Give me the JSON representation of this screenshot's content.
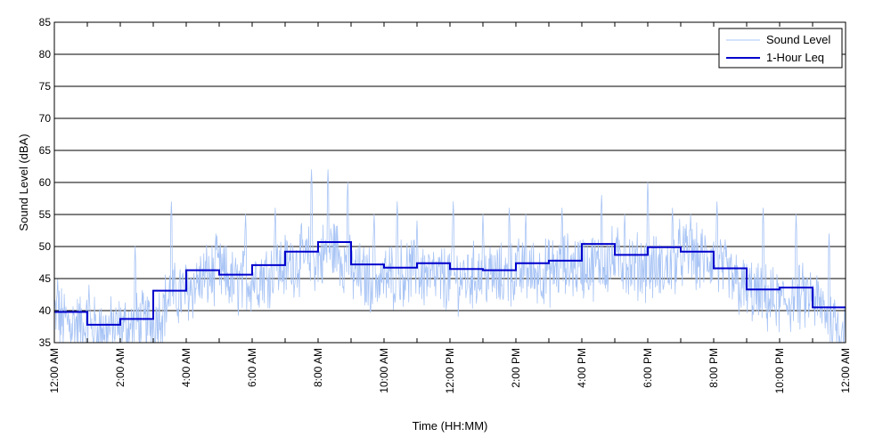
{
  "chart_data": {
    "type": "line",
    "title": "",
    "xlabel": "Time (HH:MM)",
    "ylabel": "Sound Level (dBA)",
    "ylim": [
      35,
      85
    ],
    "xlim_hours": [
      0,
      24
    ],
    "yticks": [
      35,
      40,
      45,
      50,
      55,
      60,
      65,
      70,
      75,
      80,
      85
    ],
    "xticks": [
      {
        "hour": 0,
        "label": "12:00 AM"
      },
      {
        "hour": 2,
        "label": "2:00 AM"
      },
      {
        "hour": 4,
        "label": "4:00 AM"
      },
      {
        "hour": 6,
        "label": "6:00 AM"
      },
      {
        "hour": 8,
        "label": "8:00 AM"
      },
      {
        "hour": 10,
        "label": "10:00 AM"
      },
      {
        "hour": 12,
        "label": "12:00 PM"
      },
      {
        "hour": 14,
        "label": "2:00 PM"
      },
      {
        "hour": 16,
        "label": "4:00 PM"
      },
      {
        "hour": 18,
        "label": "6:00 PM"
      },
      {
        "hour": 20,
        "label": "8:00 PM"
      },
      {
        "hour": 22,
        "label": "10:00 PM"
      },
      {
        "hour": 24,
        "label": "12:00 AM"
      }
    ],
    "grid": "horizontal",
    "legend_position": "top-right",
    "series": [
      {
        "name": "Sound Level",
        "kind": "fluctuating-trace",
        "color": "#a8c4f5",
        "x_hours": [
          0,
          0.5,
          1,
          1.5,
          2,
          2.5,
          3,
          3.5,
          4,
          4.5,
          5,
          5.5,
          6,
          6.5,
          7,
          7.5,
          8,
          8.5,
          9,
          9.5,
          10,
          10.5,
          11,
          11.5,
          12,
          12.5,
          13,
          13.5,
          14,
          14.5,
          15,
          15.5,
          16,
          16.5,
          17,
          17.5,
          18,
          18.5,
          19,
          19.5,
          20,
          20.5,
          21,
          21.5,
          22,
          22.5,
          23,
          23.5,
          24
        ],
        "values": [
          39,
          38,
          37.5,
          37,
          37,
          38,
          38,
          42,
          43,
          45,
          46,
          44,
          45,
          46,
          47,
          48,
          48,
          50,
          46,
          45,
          45,
          46,
          46,
          45,
          45,
          45,
          46,
          45,
          46,
          46,
          46,
          47,
          47,
          47,
          48,
          47,
          47,
          46,
          49,
          48,
          48,
          45,
          43,
          42,
          41,
          42,
          42,
          39,
          37
        ],
        "peaks": [
          {
            "hour": 0.1,
            "value": 45
          },
          {
            "hour": 1.05,
            "value": 44
          },
          {
            "hour": 2.45,
            "value": 50
          },
          {
            "hour": 3.55,
            "value": 57
          },
          {
            "hour": 4.9,
            "value": 52
          },
          {
            "hour": 5.8,
            "value": 55
          },
          {
            "hour": 6.7,
            "value": 56
          },
          {
            "hour": 7.8,
            "value": 62
          },
          {
            "hour": 8.3,
            "value": 62
          },
          {
            "hour": 8.9,
            "value": 60
          },
          {
            "hour": 9.7,
            "value": 55
          },
          {
            "hour": 10.4,
            "value": 57
          },
          {
            "hour": 11.0,
            "value": 54
          },
          {
            "hour": 12.1,
            "value": 57
          },
          {
            "hour": 13.0,
            "value": 55
          },
          {
            "hour": 13.8,
            "value": 56
          },
          {
            "hour": 14.3,
            "value": 55
          },
          {
            "hour": 15.4,
            "value": 56
          },
          {
            "hour": 16.6,
            "value": 58
          },
          {
            "hour": 17.3,
            "value": 55
          },
          {
            "hour": 18.0,
            "value": 60
          },
          {
            "hour": 18.75,
            "value": 56
          },
          {
            "hour": 19.3,
            "value": 55
          },
          {
            "hour": 20.1,
            "value": 57
          },
          {
            "hour": 21.5,
            "value": 56
          },
          {
            "hour": 22.5,
            "value": 55
          },
          {
            "hour": 23.5,
            "value": 52
          }
        ]
      },
      {
        "name": "1-Hour Leq",
        "kind": "step",
        "color": "#0000cc",
        "hour_starts": [
          0,
          1,
          2,
          3,
          4,
          5,
          6,
          7,
          8,
          9,
          10,
          11,
          12,
          13,
          14,
          15,
          16,
          17,
          18,
          19,
          20,
          21,
          22,
          23
        ],
        "values": [
          39.8,
          37.8,
          38.7,
          43.1,
          46.3,
          45.6,
          47.1,
          49.2,
          50.7,
          47.2,
          46.7,
          47.4,
          46.5,
          46.3,
          47.4,
          47.8,
          50.4,
          48.7,
          49.9,
          49.2,
          46.6,
          43.3,
          43.6,
          40.5
        ]
      }
    ]
  }
}
